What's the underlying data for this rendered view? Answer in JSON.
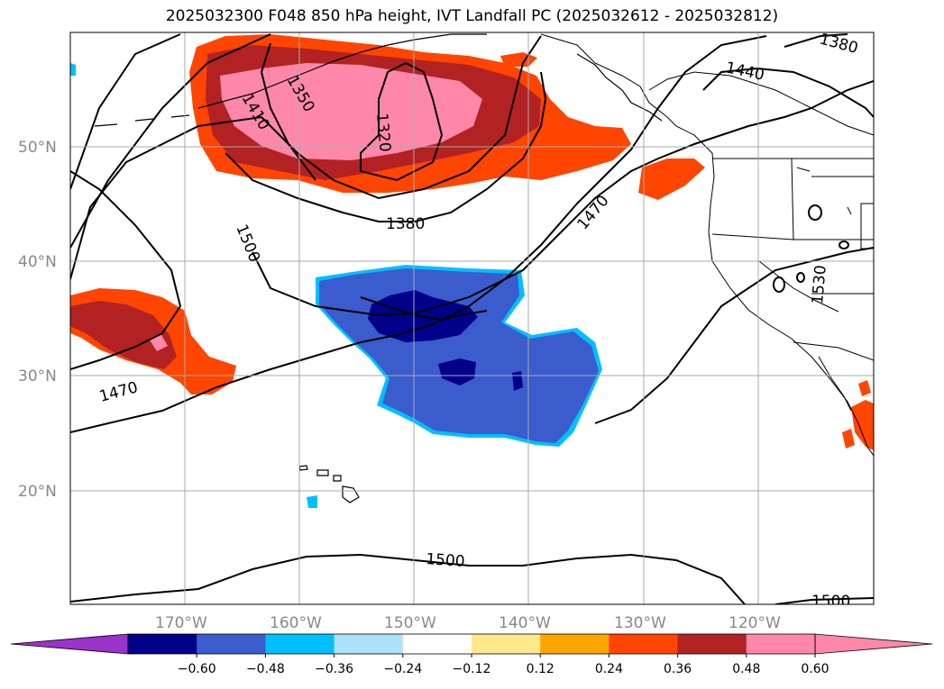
{
  "title": "2025032300 F048 850 hPa height, IVT Landfall PC (2025032612 - 2025032812)",
  "lat_labels": [
    "50°N",
    "40°N",
    "30°N",
    "20°N"
  ],
  "lon_labels": [
    "170°W",
    "160°W",
    "150°W",
    "140°W",
    "130°W",
    "120°W"
  ],
  "contour_labels": [
    "1380",
    "1440",
    "1350",
    "1410",
    "1320",
    "1380",
    "1470",
    "1500",
    "1530",
    "1470",
    "1500",
    "1500"
  ],
  "colorbar": {
    "ticks": [
      "−0.60",
      "−0.48",
      "−0.36",
      "−0.24",
      "−0.12",
      "0.12",
      "0.24",
      "0.36",
      "0.48",
      "0.60"
    ],
    "colors": [
      "#9933cc",
      "#00008b",
      "#3a5ccc",
      "#00bfff",
      "#aee2fb",
      "#ffffff",
      "#ffe98a",
      "#ffa500",
      "#ff4500",
      "#b22222",
      "#ff88aa",
      "#ff88aa"
    ]
  },
  "chart_data": {
    "type": "heatmap",
    "title": "2025032300 F048 850 hPa height, IVT Landfall PC (2025032612 - 2025032812)",
    "levels": [
      -0.6,
      -0.48,
      -0.36,
      -0.24,
      -0.12,
      0.12,
      0.24,
      0.36,
      0.48,
      0.6
    ],
    "contour_variable": "850 hPa height",
    "contour_levels": [
      1320,
      1350,
      1380,
      1410,
      1440,
      1470,
      1500,
      1530
    ],
    "longitude_range": [
      "180°W",
      "110°W"
    ],
    "latitude_range": [
      "10°N",
      "60°N"
    ]
  }
}
